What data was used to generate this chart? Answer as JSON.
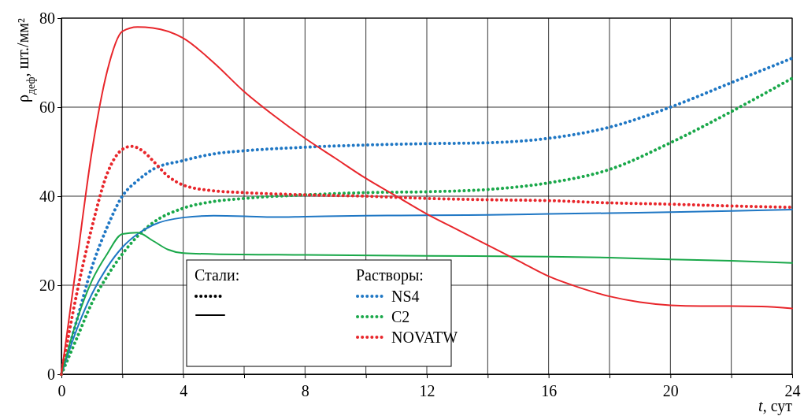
{
  "chart_data": {
    "type": "line",
    "xlabel": "t, сут",
    "ylabel": "ρ$_{деф}$, шт./мм²",
    "xlim": [
      0,
      24
    ],
    "ylim": [
      0,
      80
    ],
    "xticks": [
      0,
      {
        "value": 2,
        "label": null
      },
      4,
      {
        "value": 6,
        "label": null
      },
      8,
      {
        "value": 10,
        "label": null
      },
      12,
      {
        "value": 14,
        "label": null
      },
      16,
      {
        "value": 18,
        "label": null
      },
      20,
      {
        "value": 22,
        "label": null
      },
      24
    ],
    "yticks": [
      0,
      20,
      40,
      60,
      80
    ],
    "grid": true,
    "legend": "bottom",
    "marker": "none",
    "legend_title": "Растворы:",
    "annotations": [
      "Стали:"
    ],
    "series": [
      {
        "name": "NS4",
        "color": "#1f77c4",
        "line_style": "dotted",
        "x": [
          0,
          0.5,
          1,
          1.5,
          2,
          2.5,
          3,
          4,
          5,
          6,
          8,
          10,
          12,
          14,
          16,
          18,
          20,
          22,
          24
        ],
        "values": [
          0,
          12,
          24,
          33,
          40,
          43.5,
          46,
          48,
          49.5,
          50.2,
          51,
          51.5,
          51.8,
          52,
          53,
          55.5,
          60,
          65.5,
          71
        ]
      },
      {
        "name": "C2",
        "color": "#1aa84a",
        "line_style": "dotted",
        "x": [
          0,
          0.5,
          1,
          1.5,
          2,
          2.5,
          3,
          4,
          5,
          6,
          8,
          10,
          12,
          14,
          16,
          18,
          20,
          22,
          24
        ],
        "values": [
          0,
          8,
          16,
          22,
          27,
          31,
          34,
          37.3,
          38.8,
          39.5,
          40.3,
          40.8,
          41,
          41.5,
          43,
          46,
          52,
          59,
          66.5
        ]
      },
      {
        "name": "NOVATW",
        "color": "#e8262b",
        "line_style": "dotted",
        "x": [
          0,
          0.5,
          1,
          1.5,
          2,
          2.3,
          2.7,
          3,
          3.5,
          4,
          5,
          6,
          8,
          10,
          12,
          14,
          16,
          18,
          20,
          22,
          24
        ],
        "values": [
          0,
          18,
          33,
          45,
          50.5,
          51.2,
          50,
          48,
          44.5,
          42.5,
          41.2,
          40.8,
          40.3,
          40,
          39.5,
          39.2,
          39,
          38.5,
          38.2,
          37.8,
          37.5
        ]
      },
      {
        "color": "#1f77c4",
        "line_style": "solid",
        "x": [
          0,
          0.5,
          1,
          1.5,
          2,
          2.5,
          3,
          4,
          5,
          6,
          7,
          8,
          10,
          12,
          14,
          16,
          18,
          20,
          22,
          24
        ],
        "values": [
          0,
          10,
          18,
          24,
          28.5,
          31.5,
          33.5,
          35.2,
          35.6,
          35.5,
          35.3,
          35.4,
          35.6,
          35.7,
          35.8,
          36,
          36.2,
          36.4,
          36.7,
          37
        ]
      },
      {
        "color": "#1aa84a",
        "line_style": "solid",
        "x": [
          0,
          0.5,
          1,
          1.5,
          2,
          2.5,
          3,
          3.5,
          4,
          5,
          8,
          12,
          16,
          18,
          20,
          22,
          24
        ],
        "values": [
          0,
          12,
          21,
          27,
          31.5,
          31.8,
          30,
          28,
          27.2,
          27,
          26.8,
          26.6,
          26.4,
          26.2,
          25.8,
          25.5,
          25
        ]
      },
      {
        "color": "#e8262b",
        "line_style": "solid",
        "x": [
          0,
          0.5,
          1,
          1.5,
          2,
          2.5,
          3,
          4,
          5,
          6,
          7,
          8,
          9,
          10,
          11,
          12,
          13,
          14,
          15,
          16,
          17,
          18,
          19,
          20,
          21,
          22,
          23,
          24
        ],
        "values": [
          0,
          25,
          50,
          68,
          77,
          78,
          77.8,
          75.5,
          70,
          63.5,
          58,
          53,
          48.5,
          44,
          40,
          36,
          32.5,
          29,
          25.5,
          22,
          19.5,
          17.5,
          16.2,
          15.5,
          15.3,
          15.3,
          15.2,
          14.8
        ]
      }
    ]
  }
}
